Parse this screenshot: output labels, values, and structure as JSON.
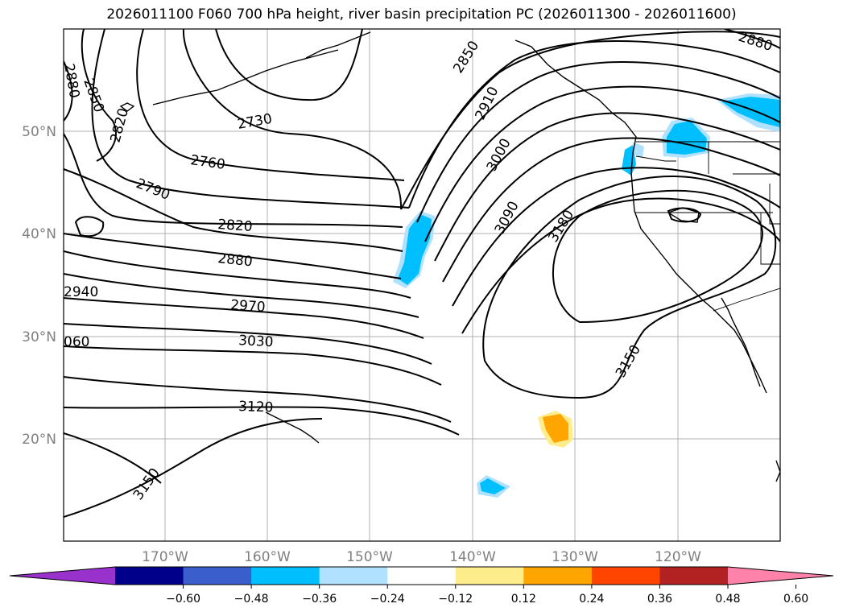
{
  "title": "2026011100 F060 700 hPa height, river basin precipitation PC (2026011300 - 2026011600)",
  "map": {
    "lon_range": [
      -180,
      -110
    ],
    "lat_range": [
      10,
      60
    ],
    "lat_labels": [
      "50°N",
      "40°N",
      "30°N",
      "20°N"
    ],
    "lon_labels": [
      "170°W",
      "160°W",
      "150°W",
      "140°W",
      "130°W",
      "120°W"
    ]
  },
  "contour_labels": [
    "2880",
    "2850",
    "2820",
    "2730",
    "2760",
    "2790",
    "2820",
    "2880",
    "2940",
    "2970",
    "3030",
    "060",
    "3120",
    "3150",
    "2850",
    "2910",
    "3000",
    "3090",
    "3180",
    "3150",
    "2880"
  ],
  "colorbar": {
    "colors": [
      "#9932cc",
      "#00008b",
      "#3a5fcd",
      "#00bfff",
      "#b0e2ff",
      "#ffffff",
      "#ffec8b",
      "#ffa500",
      "#ff4500",
      "#b22222",
      "#ff82ab"
    ],
    "tick_labels": [
      "−0.60",
      "−0.48",
      "−0.36",
      "−0.24",
      "−0.12",
      "0.12",
      "0.24",
      "0.36",
      "0.48",
      "0.60"
    ]
  }
}
